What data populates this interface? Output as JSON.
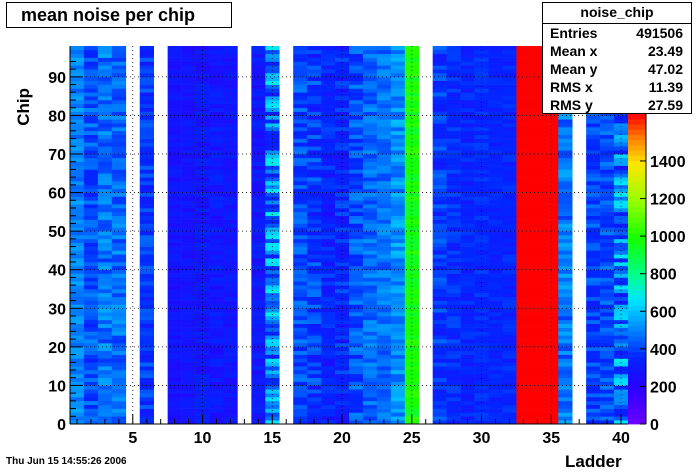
{
  "chart_data": {
    "type": "heatmap",
    "title": "mean noise per chip",
    "xlabel": "Ladder",
    "ylabel": "Chip",
    "xlim": [
      0.5,
      40.5
    ],
    "ylim": [
      0,
      98
    ],
    "x_ticks": [
      5,
      10,
      15,
      20,
      25,
      30,
      35,
      40
    ],
    "y_ticks": [
      0,
      10,
      20,
      30,
      40,
      50,
      60,
      70,
      80,
      90
    ],
    "z_range": [
      0,
      1650
    ],
    "colorbar_ticks": [
      0,
      200,
      400,
      600,
      800,
      1000,
      1200,
      1400
    ],
    "grid": true,
    "ladders": [
      {
        "x": 1,
        "level": 500,
        "var": 60
      },
      {
        "x": 2,
        "level": 420,
        "var": 90
      },
      {
        "x": 3,
        "level": 470,
        "var": 90
      },
      {
        "x": 4,
        "level": 460,
        "var": 80
      },
      {
        "x": 5,
        "level": 0,
        "empty": true
      },
      {
        "x": 6,
        "level": 380,
        "var": 80
      },
      {
        "x": 7,
        "level": 0,
        "empty": true
      },
      {
        "x": 8,
        "level": 280,
        "var": 40
      },
      {
        "x": 9,
        "level": 280,
        "var": 40
      },
      {
        "x": 10,
        "level": 300,
        "var": 60
      },
      {
        "x": 11,
        "level": 300,
        "var": 60
      },
      {
        "x": 12,
        "level": 290,
        "var": 40
      },
      {
        "x": 13,
        "level": 0,
        "empty": true
      },
      {
        "x": 14,
        "level": 300,
        "var": 60
      },
      {
        "x": 15,
        "level": 500,
        "var": 200
      },
      {
        "x": 16,
        "level": 0,
        "empty": true
      },
      {
        "x": 17,
        "level": 420,
        "var": 80
      },
      {
        "x": 18,
        "level": 380,
        "var": 100
      },
      {
        "x": 19,
        "level": 330,
        "var": 80
      },
      {
        "x": 20,
        "level": 350,
        "var": 90
      },
      {
        "x": 21,
        "level": 420,
        "var": 90
      },
      {
        "x": 22,
        "level": 460,
        "var": 70
      },
      {
        "x": 23,
        "level": 470,
        "var": 70
      },
      {
        "x": 24,
        "level": 520,
        "var": 80
      },
      {
        "x": 25,
        "level": 980,
        "var": 60
      },
      {
        "x": 26,
        "level": 0,
        "empty": true
      },
      {
        "x": 27,
        "level": 380,
        "var": 80
      },
      {
        "x": 28,
        "level": 360,
        "var": 60
      },
      {
        "x": 29,
        "level": 340,
        "var": 50
      },
      {
        "x": 30,
        "level": 350,
        "var": 50
      },
      {
        "x": 31,
        "level": 340,
        "var": 40
      },
      {
        "x": 32,
        "level": 340,
        "var": 50
      },
      {
        "x": 33,
        "level": 1650,
        "var": 0
      },
      {
        "x": 34,
        "level": 1650,
        "var": 0
      },
      {
        "x": 35,
        "level": 1650,
        "var": 0
      },
      {
        "x": 36,
        "level": 480,
        "var": 90
      },
      {
        "x": 37,
        "level": 0,
        "empty": true
      },
      {
        "x": 38,
        "level": 400,
        "var": 80
      },
      {
        "x": 39,
        "level": 420,
        "var": 80
      },
      {
        "x": 40,
        "level": 480,
        "var": 200
      }
    ]
  },
  "stats": {
    "name": "noise_chip",
    "rows": [
      {
        "label": "Entries",
        "value": "491506"
      },
      {
        "label": "Mean x",
        "value": "23.49"
      },
      {
        "label": "Mean y",
        "value": "47.02"
      },
      {
        "label": "RMS x",
        "value": "11.39"
      },
      {
        "label": "RMS y",
        "value": "27.59"
      }
    ]
  },
  "timestamp": "Thu Jun 15 14:55:26 2006"
}
